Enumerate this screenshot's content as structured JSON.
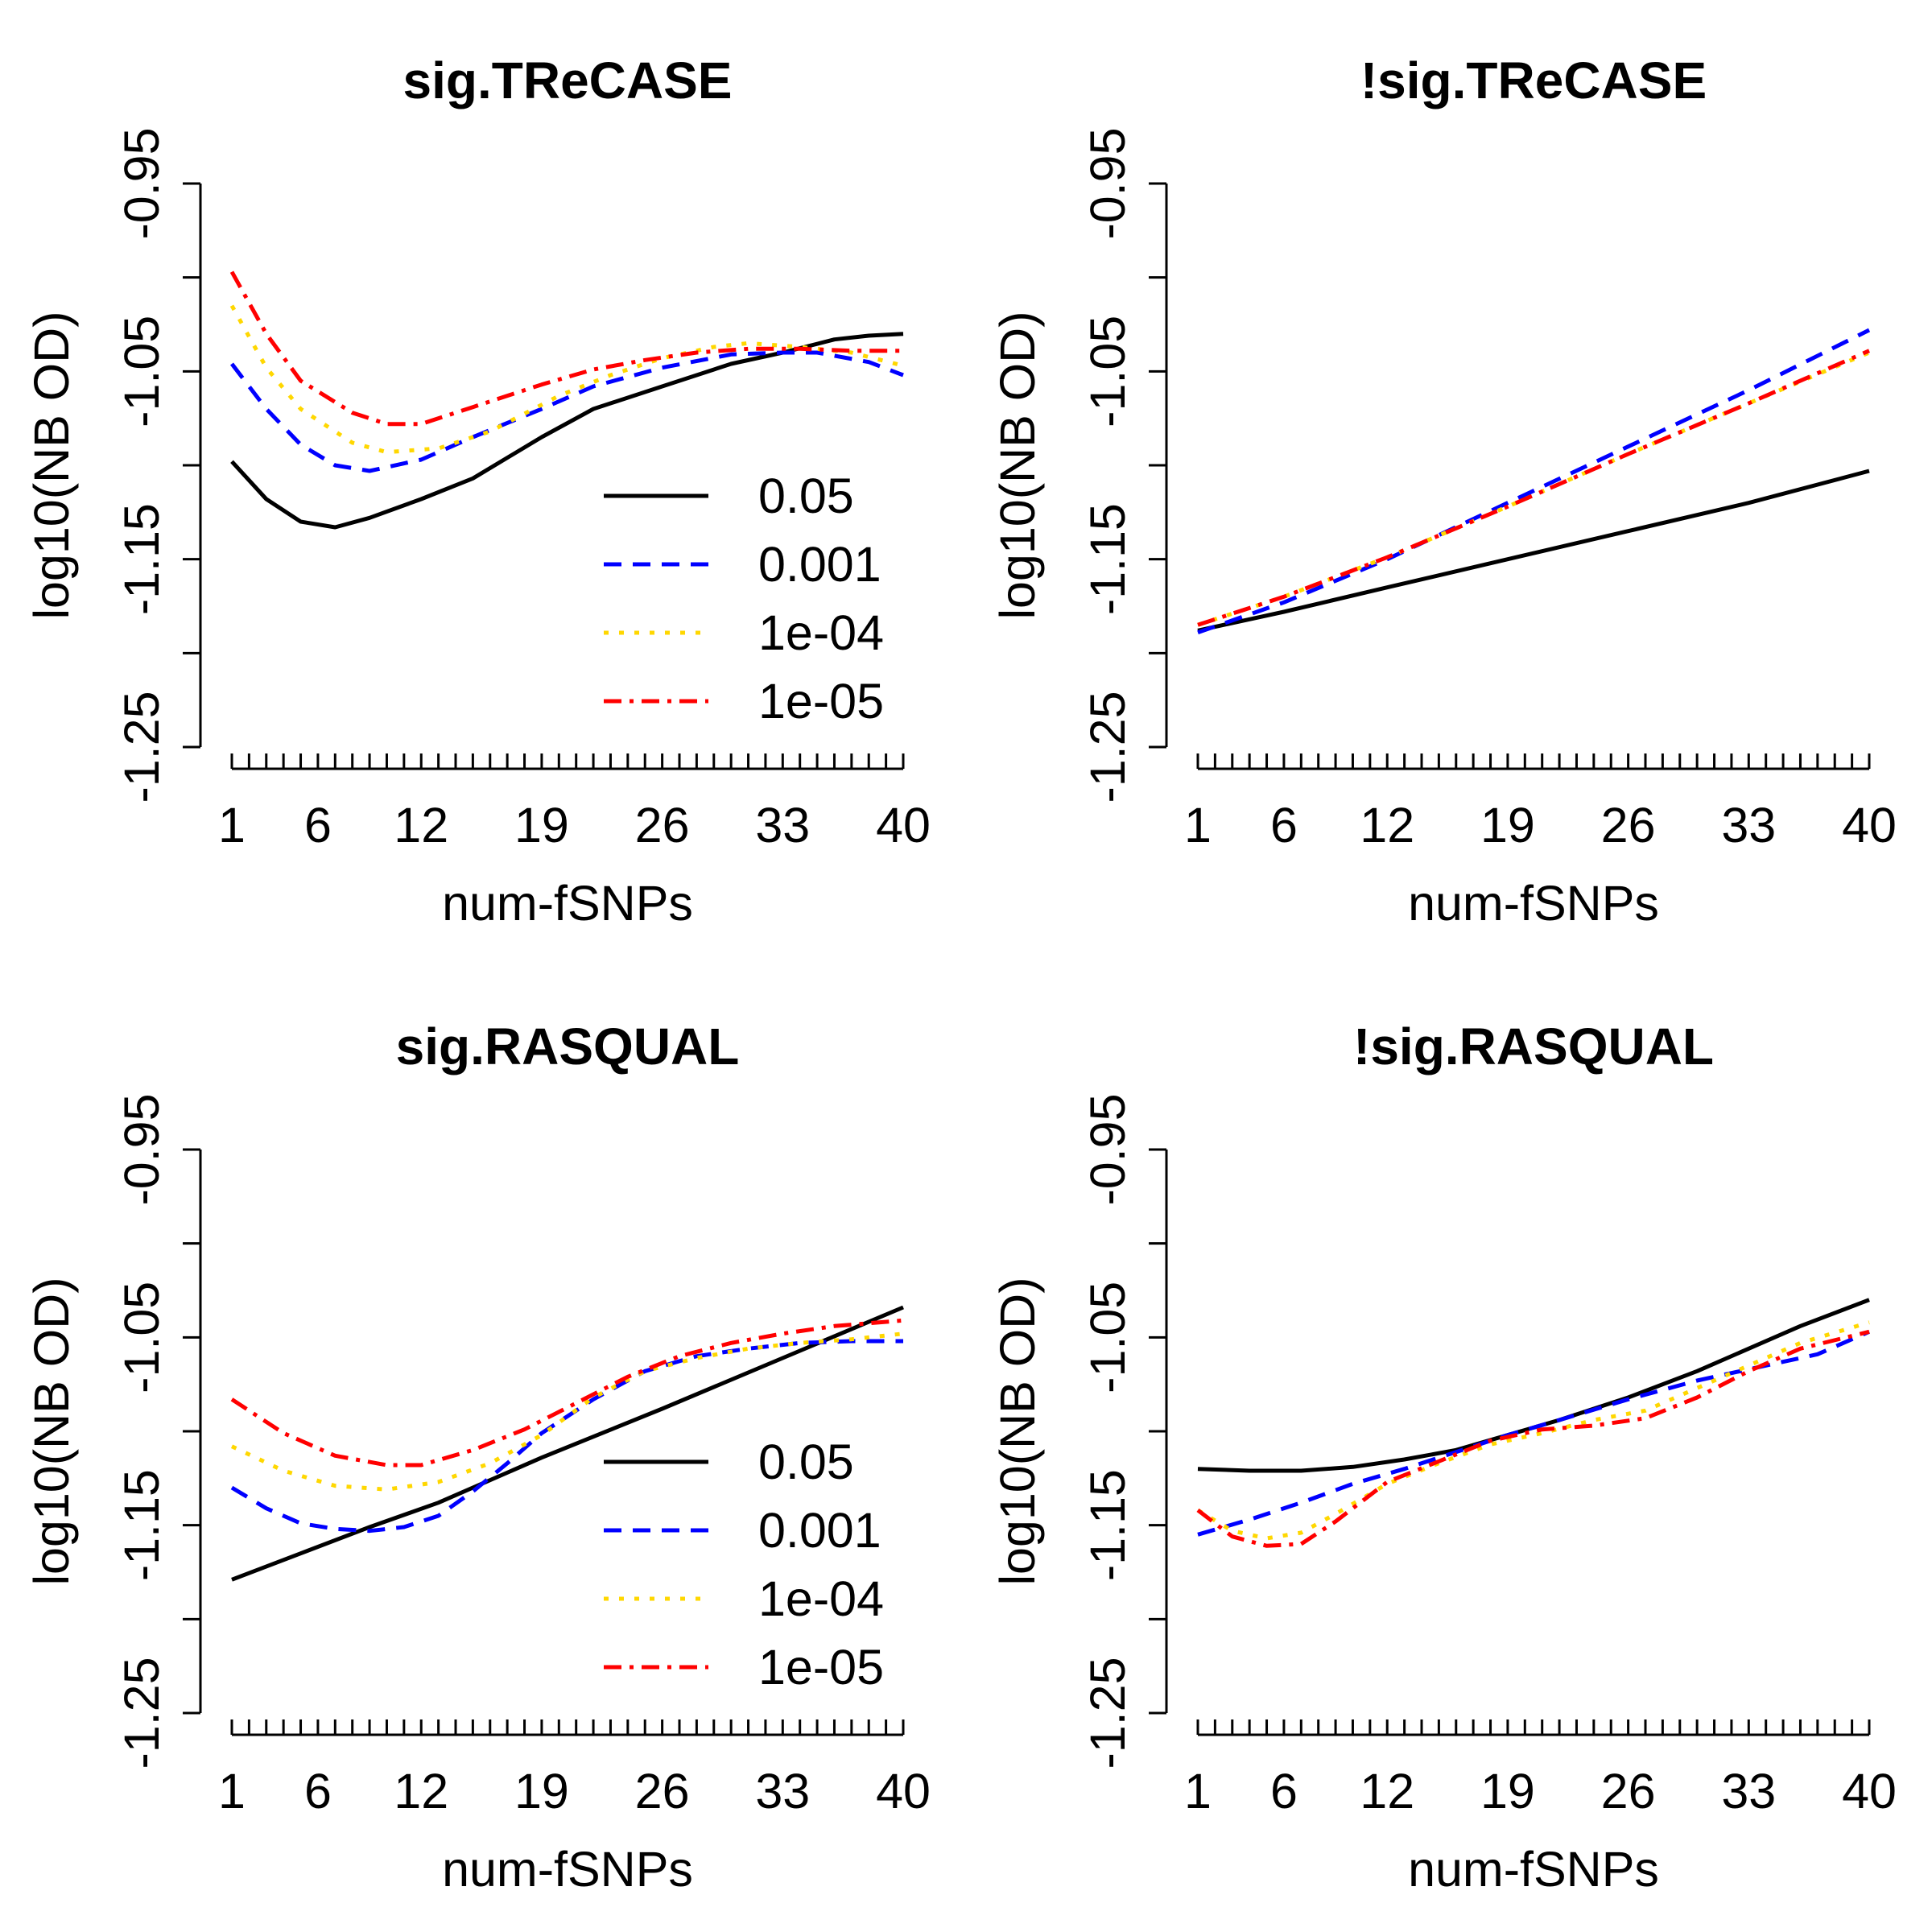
{
  "chart_data": [
    {
      "type": "line",
      "title": "sig.TReCASE",
      "xlabel": "num-fSNPs",
      "ylabel": "log10(NB OD)",
      "xlim": [
        1,
        40
      ],
      "ylim": [
        -1.25,
        -0.95
      ],
      "x_tick_labels": [
        "1",
        "6",
        "12",
        "19",
        "26",
        "33",
        "40"
      ],
      "y_tick_labels": [
        "-1.25",
        "-1.15",
        "-1.05",
        "-0.95"
      ],
      "legend": {
        "position": "bottom-right",
        "entries": [
          "0.05",
          "0.001",
          "1e-04",
          "1e-05"
        ]
      },
      "series": [
        {
          "name": "0.05",
          "color": "#000000",
          "dash": "solid",
          "points": [
            [
              1,
              -1.098
            ],
            [
              3,
              -1.118
            ],
            [
              5,
              -1.13
            ],
            [
              7,
              -1.133
            ],
            [
              9,
              -1.128
            ],
            [
              12,
              -1.118
            ],
            [
              15,
              -1.107
            ],
            [
              19,
              -1.085
            ],
            [
              22,
              -1.07
            ],
            [
              26,
              -1.058
            ],
            [
              30,
              -1.046
            ],
            [
              33,
              -1.04
            ],
            [
              36,
              -1.033
            ],
            [
              38,
              -1.031
            ],
            [
              40,
              -1.03
            ]
          ]
        },
        {
          "name": "0.001",
          "color": "#0000ff",
          "dash": "dashed",
          "points": [
            [
              1,
              -1.046
            ],
            [
              3,
              -1.07
            ],
            [
              5,
              -1.089
            ],
            [
              7,
              -1.1
            ],
            [
              9,
              -1.103
            ],
            [
              12,
              -1.097
            ],
            [
              15,
              -1.085
            ],
            [
              19,
              -1.07
            ],
            [
              22,
              -1.058
            ],
            [
              26,
              -1.048
            ],
            [
              30,
              -1.041
            ],
            [
              33,
              -1.04
            ],
            [
              35,
              -1.04
            ],
            [
              38,
              -1.045
            ],
            [
              40,
              -1.052
            ]
          ]
        },
        {
          "name": "1e-04",
          "color": "#ffd700",
          "dash": "dotted",
          "points": [
            [
              1,
              -1.015
            ],
            [
              3,
              -1.048
            ],
            [
              5,
              -1.07
            ],
            [
              8,
              -1.088
            ],
            [
              10,
              -1.093
            ],
            [
              13,
              -1.091
            ],
            [
              16,
              -1.082
            ],
            [
              20,
              -1.063
            ],
            [
              23,
              -1.052
            ],
            [
              26,
              -1.043
            ],
            [
              29,
              -1.037
            ],
            [
              31,
              -1.035
            ],
            [
              34,
              -1.037
            ],
            [
              37,
              -1.04
            ],
            [
              40,
              -1.047
            ]
          ]
        },
        {
          "name": "1e-05",
          "color": "#ff0000",
          "dash": "dashdot",
          "points": [
            [
              1,
              -0.997
            ],
            [
              3,
              -1.03
            ],
            [
              5,
              -1.055
            ],
            [
              8,
              -1.072
            ],
            [
              10,
              -1.078
            ],
            [
              12,
              -1.078
            ],
            [
              15,
              -1.069
            ],
            [
              19,
              -1.057
            ],
            [
              22,
              -1.049
            ],
            [
              25,
              -1.044
            ],
            [
              28,
              -1.04
            ],
            [
              31,
              -1.038
            ],
            [
              34,
              -1.038
            ],
            [
              37,
              -1.039
            ],
            [
              40,
              -1.039
            ]
          ]
        }
      ]
    },
    {
      "type": "line",
      "title": "!sig.TReCASE",
      "xlabel": "num-fSNPs",
      "ylabel": "log10(NB OD)",
      "xlim": [
        1,
        40
      ],
      "ylim": [
        -1.25,
        -0.95
      ],
      "x_tick_labels": [
        "1",
        "6",
        "12",
        "19",
        "26",
        "33",
        "40"
      ],
      "y_tick_labels": [
        "-1.25",
        "-1.15",
        "-1.05",
        "-0.95"
      ],
      "series": [
        {
          "name": "0.05",
          "color": "#000000",
          "dash": "solid",
          "points": [
            [
              1,
              -1.188
            ],
            [
              6,
              -1.178
            ],
            [
              12,
              -1.165
            ],
            [
              19,
              -1.15
            ],
            [
              26,
              -1.135
            ],
            [
              33,
              -1.12
            ],
            [
              40,
              -1.103
            ]
          ]
        },
        {
          "name": "0.001",
          "color": "#0000ff",
          "dash": "dashed",
          "points": [
            [
              1,
              -1.189
            ],
            [
              6,
              -1.173
            ],
            [
              12,
              -1.15
            ],
            [
              19,
              -1.12
            ],
            [
              26,
              -1.09
            ],
            [
              33,
              -1.06
            ],
            [
              40,
              -1.028
            ]
          ]
        },
        {
          "name": "1e-04",
          "color": "#ffd700",
          "dash": "dotted",
          "points": [
            [
              1,
              -1.185
            ],
            [
              6,
              -1.17
            ],
            [
              12,
              -1.149
            ],
            [
              19,
              -1.122
            ],
            [
              26,
              -1.094
            ],
            [
              33,
              -1.067
            ],
            [
              40,
              -1.04
            ]
          ]
        },
        {
          "name": "1e-05",
          "color": "#ff0000",
          "dash": "dashdot",
          "points": [
            [
              1,
              -1.185
            ],
            [
              6,
              -1.17
            ],
            [
              12,
              -1.149
            ],
            [
              19,
              -1.122
            ],
            [
              26,
              -1.094
            ],
            [
              33,
              -1.067
            ],
            [
              40,
              -1.039
            ]
          ]
        }
      ]
    },
    {
      "type": "line",
      "title": "sig.RASQUAL",
      "xlabel": "num-fSNPs",
      "ylabel": "log10(NB OD)",
      "xlim": [
        1,
        40
      ],
      "ylim": [
        -1.25,
        -0.95
      ],
      "x_tick_labels": [
        "1",
        "6",
        "12",
        "19",
        "26",
        "33",
        "40"
      ],
      "y_tick_labels": [
        "-1.25",
        "-1.15",
        "-1.05",
        "-0.95"
      ],
      "legend": {
        "position": "bottom-right",
        "entries": [
          "0.05",
          "0.001",
          "1e-04",
          "1e-05"
        ]
      },
      "series": [
        {
          "name": "0.05",
          "color": "#000000",
          "dash": "solid",
          "points": [
            [
              1,
              -1.179
            ],
            [
              5,
              -1.165
            ],
            [
              9,
              -1.151
            ],
            [
              13,
              -1.138
            ],
            [
              19,
              -1.114
            ],
            [
              26,
              -1.088
            ],
            [
              33,
              -1.061
            ],
            [
              40,
              -1.034
            ]
          ]
        },
        {
          "name": "0.001",
          "color": "#0000ff",
          "dash": "dashed",
          "points": [
            [
              1,
              -1.13
            ],
            [
              3,
              -1.141
            ],
            [
              5,
              -1.149
            ],
            [
              7,
              -1.152
            ],
            [
              9,
              -1.153
            ],
            [
              11,
              -1.151
            ],
            [
              13,
              -1.145
            ],
            [
              15,
              -1.132
            ],
            [
              17,
              -1.117
            ],
            [
              19,
              -1.101
            ],
            [
              22,
              -1.083
            ],
            [
              25,
              -1.068
            ],
            [
              28,
              -1.06
            ],
            [
              31,
              -1.056
            ],
            [
              34,
              -1.053
            ],
            [
              37,
              -1.052
            ],
            [
              40,
              -1.052
            ]
          ]
        },
        {
          "name": "1e-04",
          "color": "#ffd700",
          "dash": "dotted",
          "points": [
            [
              1,
              -1.108
            ],
            [
              4,
              -1.121
            ],
            [
              7,
              -1.129
            ],
            [
              10,
              -1.131
            ],
            [
              13,
              -1.127
            ],
            [
              16,
              -1.117
            ],
            [
              19,
              -1.102
            ],
            [
              22,
              -1.082
            ],
            [
              25,
              -1.068
            ],
            [
              28,
              -1.061
            ],
            [
              31,
              -1.056
            ],
            [
              34,
              -1.053
            ],
            [
              37,
              -1.051
            ],
            [
              40,
              -1.048
            ]
          ]
        },
        {
          "name": "1e-05",
          "color": "#ff0000",
          "dash": "dashdot",
          "points": [
            [
              1,
              -1.083
            ],
            [
              4,
              -1.101
            ],
            [
              7,
              -1.113
            ],
            [
              10,
              -1.118
            ],
            [
              12,
              -1.118
            ],
            [
              15,
              -1.11
            ],
            [
              18,
              -1.099
            ],
            [
              21,
              -1.085
            ],
            [
              24,
              -1.071
            ],
            [
              27,
              -1.06
            ],
            [
              30,
              -1.053
            ],
            [
              33,
              -1.048
            ],
            [
              36,
              -1.044
            ],
            [
              40,
              -1.041
            ]
          ]
        }
      ]
    },
    {
      "type": "line",
      "title": "!sig.RASQUAL",
      "xlabel": "num-fSNPs",
      "ylabel": "log10(NB OD)",
      "xlim": [
        1,
        40
      ],
      "ylim": [
        -1.25,
        -0.95
      ],
      "x_tick_labels": [
        "1",
        "6",
        "12",
        "19",
        "26",
        "33",
        "40"
      ],
      "y_tick_labels": [
        "-1.25",
        "-1.15",
        "-1.05",
        "-0.95"
      ],
      "series": [
        {
          "name": "0.05",
          "color": "#000000",
          "dash": "solid",
          "points": [
            [
              1,
              -1.12
            ],
            [
              4,
              -1.121
            ],
            [
              7,
              -1.121
            ],
            [
              10,
              -1.119
            ],
            [
              13,
              -1.115
            ],
            [
              16,
              -1.11
            ],
            [
              19,
              -1.102
            ],
            [
              22,
              -1.094
            ],
            [
              26,
              -1.082
            ],
            [
              30,
              -1.068
            ],
            [
              33,
              -1.056
            ],
            [
              36,
              -1.044
            ],
            [
              40,
              -1.03
            ]
          ]
        },
        {
          "name": "0.001",
          "color": "#0000ff",
          "dash": "dashed",
          "points": [
            [
              1,
              -1.155
            ],
            [
              4,
              -1.147
            ],
            [
              7,
              -1.138
            ],
            [
              10,
              -1.128
            ],
            [
              13,
              -1.12
            ],
            [
              16,
              -1.111
            ],
            [
              19,
              -1.102
            ],
            [
              22,
              -1.094
            ],
            [
              26,
              -1.083
            ],
            [
              30,
              -1.073
            ],
            [
              33,
              -1.067
            ],
            [
              37,
              -1.059
            ],
            [
              40,
              -1.047
            ]
          ]
        },
        {
          "name": "1e-04",
          "color": "#ffd700",
          "dash": "dotted",
          "points": [
            [
              1,
              -1.142
            ],
            [
              3,
              -1.153
            ],
            [
              5,
              -1.157
            ],
            [
              7,
              -1.154
            ],
            [
              9,
              -1.144
            ],
            [
              12,
              -1.128
            ],
            [
              15,
              -1.117
            ],
            [
              18,
              -1.107
            ],
            [
              21,
              -1.101
            ],
            [
              24,
              -1.094
            ],
            [
              27,
              -1.089
            ],
            [
              30,
              -1.077
            ],
            [
              33,
              -1.065
            ],
            [
              36,
              -1.053
            ],
            [
              40,
              -1.042
            ]
          ]
        },
        {
          "name": "1e-05",
          "color": "#ff0000",
          "dash": "dashdot",
          "points": [
            [
              1,
              -1.142
            ],
            [
              3,
              -1.156
            ],
            [
              5,
              -1.161
            ],
            [
              7,
              -1.16
            ],
            [
              9,
              -1.148
            ],
            [
              12,
              -1.127
            ],
            [
              15,
              -1.116
            ],
            [
              18,
              -1.105
            ],
            [
              21,
              -1.099
            ],
            [
              24,
              -1.097
            ],
            [
              27,
              -1.093
            ],
            [
              30,
              -1.082
            ],
            [
              33,
              -1.068
            ],
            [
              36,
              -1.056
            ],
            [
              40,
              -1.047
            ]
          ]
        }
      ]
    }
  ]
}
